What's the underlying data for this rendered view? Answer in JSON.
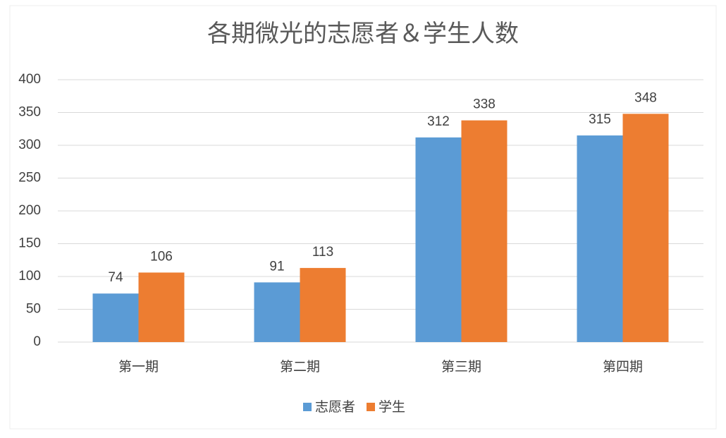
{
  "chart_data": {
    "type": "bar",
    "title": "各期微光的志愿者＆学生人数",
    "categories": [
      "第一期",
      "第二期",
      "第三期",
      "第四期"
    ],
    "series": [
      {
        "name": "志愿者",
        "color": "#5b9bd5",
        "values": [
          74,
          91,
          312,
          315
        ]
      },
      {
        "name": "学生",
        "color": "#ed7d31",
        "values": [
          106,
          113,
          338,
          348
        ]
      }
    ],
    "ylim": [
      0,
      400
    ],
    "yticks": [
      0,
      50,
      100,
      150,
      200,
      250,
      300,
      350,
      400
    ],
    "grid": true,
    "legend": "bottom"
  }
}
